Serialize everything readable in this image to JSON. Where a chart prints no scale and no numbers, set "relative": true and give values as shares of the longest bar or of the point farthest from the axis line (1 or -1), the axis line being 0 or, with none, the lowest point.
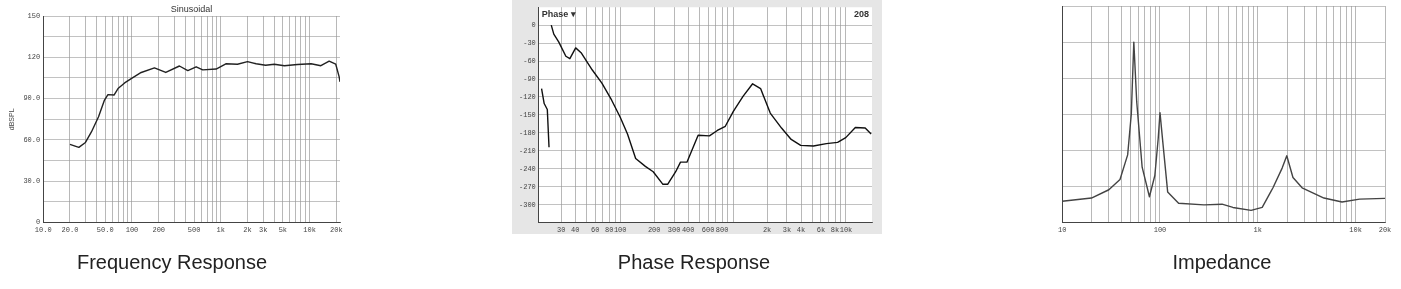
{
  "chart_data": [
    {
      "type": "line",
      "title": "Frequency Response",
      "ylabel": "dBSPL",
      "annotations": [
        "Sinusoidal"
      ],
      "x": [
        20,
        25.2,
        29.9,
        34.9,
        42,
        49,
        53.6,
        62.7,
        69.6,
        82.6,
        100,
        127,
        179,
        240,
        342,
        425,
        528,
        626,
        886,
        1140,
        1540,
        2000,
        2500,
        3200,
        4000,
        5200,
        7300,
        10400,
        13400,
        16600,
        19700,
        21500,
        22000
      ],
      "series": [
        {
          "color": "#222222",
          "values": [
            56.8,
            54.6,
            58.2,
            65.8,
            76.8,
            89,
            92.9,
            92.6,
            97.3,
            101.4,
            104.9,
            109,
            112.3,
            109,
            113.7,
            110.4,
            113.1,
            110.9,
            111.5,
            115.3,
            115,
            116.9,
            115.3,
            114.2,
            115,
            113.9,
            114.8,
            115.3,
            113.9,
            117.2,
            115,
            106,
            102.2
          ]
        }
      ],
      "log": "x",
      "xlim": [
        10,
        22000
      ],
      "ylim": [
        0,
        150
      ],
      "xticks": [
        {
          "value": 10,
          "label": "10.0"
        },
        {
          "value": 20,
          "label": "20.0"
        },
        {
          "value": 30,
          "label": null
        },
        {
          "value": 40,
          "label": null
        },
        {
          "value": 50,
          "label": "50.0"
        },
        {
          "value": 60,
          "label": null
        },
        {
          "value": 70,
          "label": null
        },
        {
          "value": 80,
          "label": null
        },
        {
          "value": 90,
          "label": null
        },
        100,
        200,
        {
          "value": 300,
          "label": null
        },
        {
          "value": 400,
          "label": null
        },
        500,
        {
          "value": 600,
          "label": null
        },
        {
          "value": 700,
          "label": null
        },
        {
          "value": 800,
          "label": null
        },
        {
          "value": 900,
          "label": null
        },
        {
          "value": 1000,
          "label": "1k"
        },
        {
          "value": 2000,
          "label": "2k"
        },
        {
          "value": 3000,
          "label": "3k"
        },
        {
          "value": 4000,
          "label": null
        },
        {
          "value": 5000,
          "label": "5k"
        },
        {
          "value": 6000,
          "label": null
        },
        {
          "value": 7000,
          "label": null
        },
        {
          "value": 8000,
          "label": null
        },
        {
          "value": 9000,
          "label": null
        },
        {
          "value": 10000,
          "label": "10k"
        },
        {
          "value": 20000,
          "label": "20k"
        }
      ],
      "yticks": [
        0,
        {
          "value": 15,
          "label": null
        },
        {
          "value": 30,
          "label": "30.0"
        },
        {
          "value": 45,
          "label": null
        },
        {
          "value": 60,
          "label": "60.0"
        },
        {
          "value": 75,
          "label": null
        },
        {
          "value": 90,
          "label": "90.0"
        },
        {
          "value": 105,
          "label": null
        },
        120,
        {
          "value": 135,
          "label": null
        },
        150
      ],
      "grid": true,
      "marker": "none",
      "line_style": "solid"
    },
    {
      "type": "line",
      "title": "Phase Response",
      "annotations": [
        "Phase ▾",
        "208"
      ],
      "series": [
        {
          "color": "#111111",
          "x": [
            24.5,
            25.8,
            28.5,
            33,
            35.8,
            40.3,
            45,
            56.6,
            68.8,
            83.8,
            100,
            116,
            137,
            167,
            196,
            239,
            263,
            310,
            342,
            390,
            490,
            617,
            725,
            853,
            1005,
            1224,
            1489,
            1752,
            2133,
            2685,
            3270,
            3970,
            5150,
            6700,
            8430,
            9950,
            12100,
            14800,
            16700
          ],
          "values": [
            0,
            -15,
            -28,
            -52,
            -56,
            -38,
            -46,
            -75,
            -97,
            -125,
            -154,
            -182,
            -223,
            -236,
            -245,
            -266,
            -266,
            -245,
            -229,
            -229,
            -184,
            -185,
            -176,
            -169,
            -144,
            -119,
            -98,
            -106,
            -147,
            -172,
            -191,
            -201,
            -202,
            -198,
            -196,
            -188,
            -171,
            -172,
            -182
          ]
        },
        {
          "color": "#111111",
          "x": [
            20.1,
            21.2,
            22.6,
            23.4
          ],
          "values": [
            -106,
            -131,
            -141,
            -204
          ]
        }
      ],
      "log": "x",
      "xlim": [
        19,
        17000
      ],
      "ylim": [
        -330,
        30
      ],
      "xticks": [
        30,
        40,
        {
          "value": 50,
          "label": null
        },
        60,
        {
          "value": 70,
          "label": null
        },
        80,
        {
          "value": 90,
          "label": null
        },
        100,
        200,
        300,
        400,
        {
          "value": 500,
          "label": null
        },
        600,
        {
          "value": 700,
          "label": null
        },
        800,
        {
          "value": 900,
          "label": null
        },
        {
          "value": 1000,
          "label": null
        },
        {
          "value": 2000,
          "label": "2k"
        },
        {
          "value": 3000,
          "label": "3k"
        },
        {
          "value": 4000,
          "label": "4k"
        },
        {
          "value": 5000,
          "label": null
        },
        {
          "value": 6000,
          "label": "6k"
        },
        {
          "value": 7000,
          "label": null
        },
        {
          "value": 8000,
          "label": "8k"
        },
        {
          "value": 9000,
          "label": null
        },
        {
          "value": 10000,
          "label": "10k"
        }
      ],
      "yticks": [
        0,
        -30,
        -60,
        -90,
        -120,
        -150,
        -180,
        -210,
        -240,
        -270,
        -300
      ],
      "grid": true,
      "marker": "none",
      "line_style": "solid"
    },
    {
      "type": "line",
      "title": "Impedance",
      "relative": true,
      "tick_labels": "x",
      "x": [
        10,
        19.9,
        30,
        39,
        46.7,
        50.9,
        54,
        57.8,
        65.7,
        78,
        88.6,
        95.9,
        100,
        107,
        119.8,
        155,
        282,
        431,
        557,
        855,
        1110,
        1430,
        1775,
        1980,
        2290,
        2840,
        4750,
        7270,
        11000,
        20000
      ],
      "series": [
        {
          "color": "#444444",
          "values": [
            0.118,
            0.136,
            0.182,
            0.239,
            0.375,
            0.602,
            1,
            0.67,
            0.307,
            0.143,
            0.261,
            0.466,
            0.609,
            0.443,
            0.17,
            0.107,
            0.098,
            0.102,
            0.084,
            0.068,
            0.084,
            0.193,
            0.302,
            0.37,
            0.25,
            0.193,
            0.136,
            0.114,
            0.13,
            0.134
          ]
        }
      ],
      "log": "x",
      "xlim": [
        10,
        20000
      ],
      "xticks": [
        10,
        {
          "value": 20,
          "label": null
        },
        {
          "value": 30,
          "label": null
        },
        {
          "value": 40,
          "label": null
        },
        {
          "value": 50,
          "label": null
        },
        {
          "value": 60,
          "label": null
        },
        {
          "value": 70,
          "label": null
        },
        {
          "value": 80,
          "label": null
        },
        {
          "value": 90,
          "label": null
        },
        100,
        {
          "value": 200,
          "label": null
        },
        {
          "value": 300,
          "label": null
        },
        {
          "value": 400,
          "label": null
        },
        {
          "value": 500,
          "label": null
        },
        {
          "value": 600,
          "label": null
        },
        {
          "value": 700,
          "label": null
        },
        {
          "value": 800,
          "label": null
        },
        {
          "value": 900,
          "label": null
        },
        {
          "value": 1000,
          "label": "1k"
        },
        {
          "value": 2000,
          "label": null
        },
        {
          "value": 3000,
          "label": null
        },
        {
          "value": 4000,
          "label": null
        },
        {
          "value": 5000,
          "label": null
        },
        {
          "value": 6000,
          "label": null
        },
        {
          "value": 7000,
          "label": null
        },
        {
          "value": 8000,
          "label": null
        },
        {
          "value": 9000,
          "label": null
        },
        {
          "value": 10000,
          "label": "10k"
        },
        {
          "value": 20000,
          "label": "20k"
        }
      ],
      "grid": true,
      "marker": "none",
      "line_style": "solid"
    }
  ]
}
